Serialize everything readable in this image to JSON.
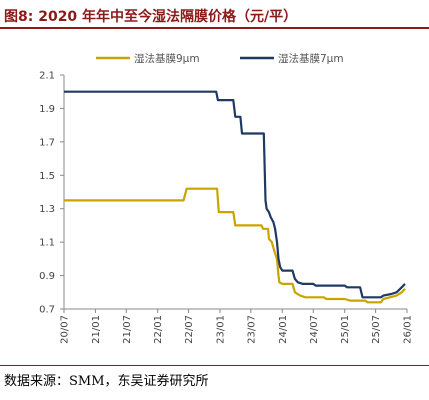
{
  "figure": {
    "title": "图8:  2020 年年中至今湿法隔膜价格（元/平）",
    "source": "数据来源：SMM，东吴证券研究所"
  },
  "chart_data": {
    "type": "line",
    "ylim": [
      0.7,
      2.1
    ],
    "yticks": [
      "2.1",
      "1.9",
      "1.7",
      "1.5",
      "1.3",
      "1.1",
      "0.9",
      "0.7"
    ],
    "xticks": [
      "20/07",
      "21/01",
      "21/07",
      "22/01",
      "22/07",
      "23/01",
      "23/07",
      "24/01",
      "24/07",
      "25/01",
      "25/07",
      "26/01"
    ],
    "x_start": "2020/07",
    "x_end": "2026/01",
    "legend_position": "top",
    "grid": false,
    "series": [
      {
        "name": "湿法基膜9μm",
        "color": "#c9a400",
        "points": [
          [
            "2020-07-01",
            1.35
          ],
          [
            "2022-06-01",
            1.35
          ],
          [
            "2022-06-20",
            1.42
          ],
          [
            "2022-12-15",
            1.42
          ],
          [
            "2022-12-25",
            1.28
          ],
          [
            "2023-03-20",
            1.28
          ],
          [
            "2023-04-01",
            1.2
          ],
          [
            "2023-09-01",
            1.2
          ],
          [
            "2023-09-10",
            1.18
          ],
          [
            "2023-10-10",
            1.18
          ],
          [
            "2023-10-15",
            1.12
          ],
          [
            "2023-11-01",
            1.1
          ],
          [
            "2023-11-15",
            1.05
          ],
          [
            "2023-12-01",
            1.0
          ],
          [
            "2023-12-10",
            0.9
          ],
          [
            "2023-12-15",
            0.86
          ],
          [
            "2024-01-01",
            0.85
          ],
          [
            "2024-03-01",
            0.85
          ],
          [
            "2024-03-15",
            0.8
          ],
          [
            "2024-04-15",
            0.78
          ],
          [
            "2024-05-15",
            0.77
          ],
          [
            "2024-09-01",
            0.77
          ],
          [
            "2024-09-15",
            0.76
          ],
          [
            "2025-01-01",
            0.76
          ],
          [
            "2025-02-01",
            0.75
          ],
          [
            "2025-05-01",
            0.75
          ],
          [
            "2025-05-15",
            0.74
          ],
          [
            "2025-08-01",
            0.74
          ],
          [
            "2025-08-15",
            0.76
          ],
          [
            "2025-11-01",
            0.78
          ],
          [
            "2025-12-01",
            0.8
          ],
          [
            "2025-12-20",
            0.82
          ]
        ]
      },
      {
        "name": "湿法基膜7μm",
        "color": "#1f3864",
        "points": [
          [
            "2020-07-01",
            2.0
          ],
          [
            "2022-12-10",
            2.0
          ],
          [
            "2022-12-20",
            1.95
          ],
          [
            "2023-03-20",
            1.95
          ],
          [
            "2023-04-01",
            1.85
          ],
          [
            "2023-05-01",
            1.85
          ],
          [
            "2023-05-10",
            1.75
          ],
          [
            "2023-09-15",
            1.75
          ],
          [
            "2023-09-25",
            1.35
          ],
          [
            "2023-10-01",
            1.3
          ],
          [
            "2023-10-15",
            1.28
          ],
          [
            "2023-10-25",
            1.25
          ],
          [
            "2023-11-10",
            1.22
          ],
          [
            "2023-11-20",
            1.18
          ],
          [
            "2023-12-01",
            1.1
          ],
          [
            "2023-12-10",
            1.0
          ],
          [
            "2023-12-20",
            0.95
          ],
          [
            "2024-01-01",
            0.93
          ],
          [
            "2024-03-01",
            0.93
          ],
          [
            "2024-03-15",
            0.88
          ],
          [
            "2024-04-01",
            0.86
          ],
          [
            "2024-05-01",
            0.85
          ],
          [
            "2024-07-01",
            0.85
          ],
          [
            "2024-07-15",
            0.84
          ],
          [
            "2025-01-01",
            0.84
          ],
          [
            "2025-01-15",
            0.83
          ],
          [
            "2025-04-01",
            0.83
          ],
          [
            "2025-04-15",
            0.77
          ],
          [
            "2025-07-01",
            0.77
          ],
          [
            "2025-08-01",
            0.77
          ],
          [
            "2025-08-15",
            0.78
          ],
          [
            "2025-10-01",
            0.79
          ],
          [
            "2025-11-01",
            0.8
          ],
          [
            "2025-12-01",
            0.83
          ],
          [
            "2025-12-20",
            0.85
          ]
        ]
      }
    ]
  }
}
